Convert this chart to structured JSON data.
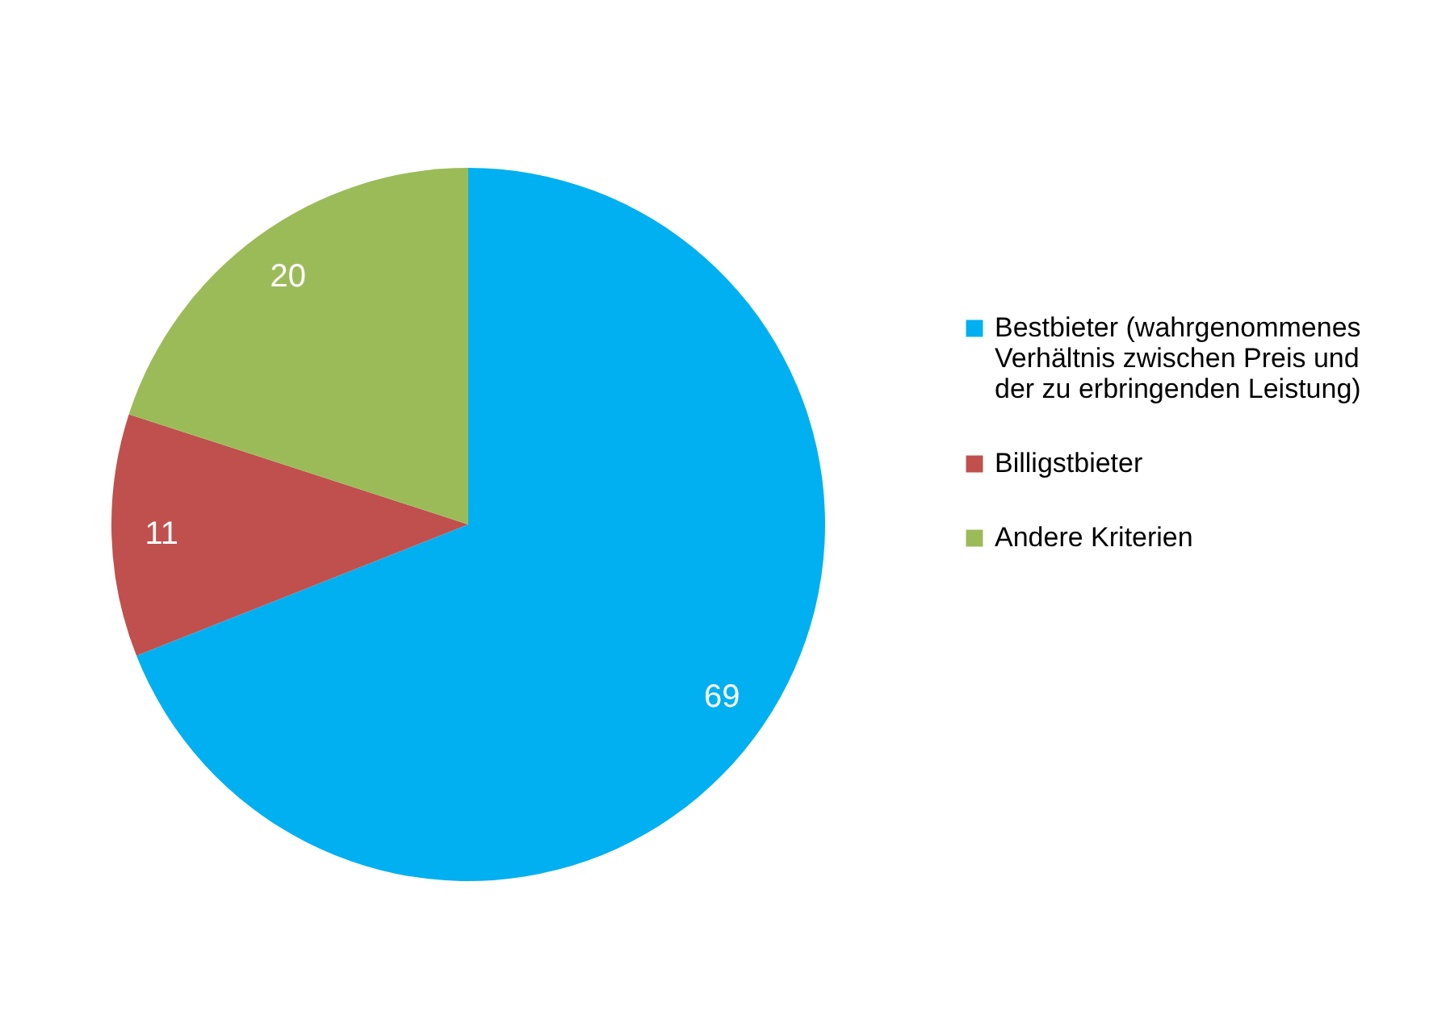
{
  "chart_data": {
    "type": "pie",
    "categories": [
      "Bestbieter (wahrgenommenes Verhältnis zwischen Preis und der zu erbringenden Leistung)",
      "Billigstbieter",
      "Andere Kriterien"
    ],
    "values": [
      69,
      11,
      20
    ],
    "colors": [
      "#00b0f0",
      "#c0504d",
      "#9bbb59"
    ],
    "data_labels": true,
    "legend": "right"
  }
}
